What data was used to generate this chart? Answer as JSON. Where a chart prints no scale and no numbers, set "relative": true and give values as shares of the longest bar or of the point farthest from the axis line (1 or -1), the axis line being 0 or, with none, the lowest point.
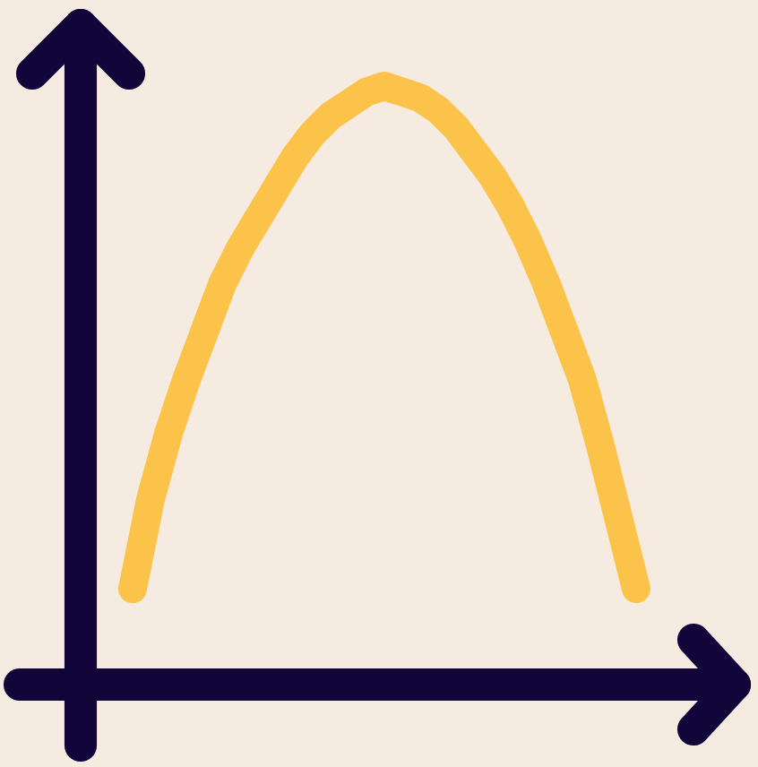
{
  "chart_data": {
    "type": "line",
    "relative": true,
    "categories": [
      null,
      null,
      null,
      null,
      null,
      null,
      null,
      null,
      null,
      null,
      null,
      null,
      null,
      null,
      null,
      null,
      null,
      null,
      null,
      null,
      null,
      null,
      null,
      null,
      null,
      null,
      null,
      null,
      null
    ],
    "series": [
      {
        "color": "#fcc34b",
        "values": [
          0.16,
          0.31,
          0.42,
          0.51,
          0.59,
          0.67,
          0.73,
          0.78,
          0.83,
          0.88,
          0.92,
          0.95,
          0.97,
          0.99,
          1,
          0.99,
          0.98,
          0.96,
          0.93,
          0.89,
          0.85,
          0.8,
          0.74,
          0.67,
          0.59,
          0.51,
          0.4,
          0.28,
          0.16
        ]
      }
    ]
  }
}
